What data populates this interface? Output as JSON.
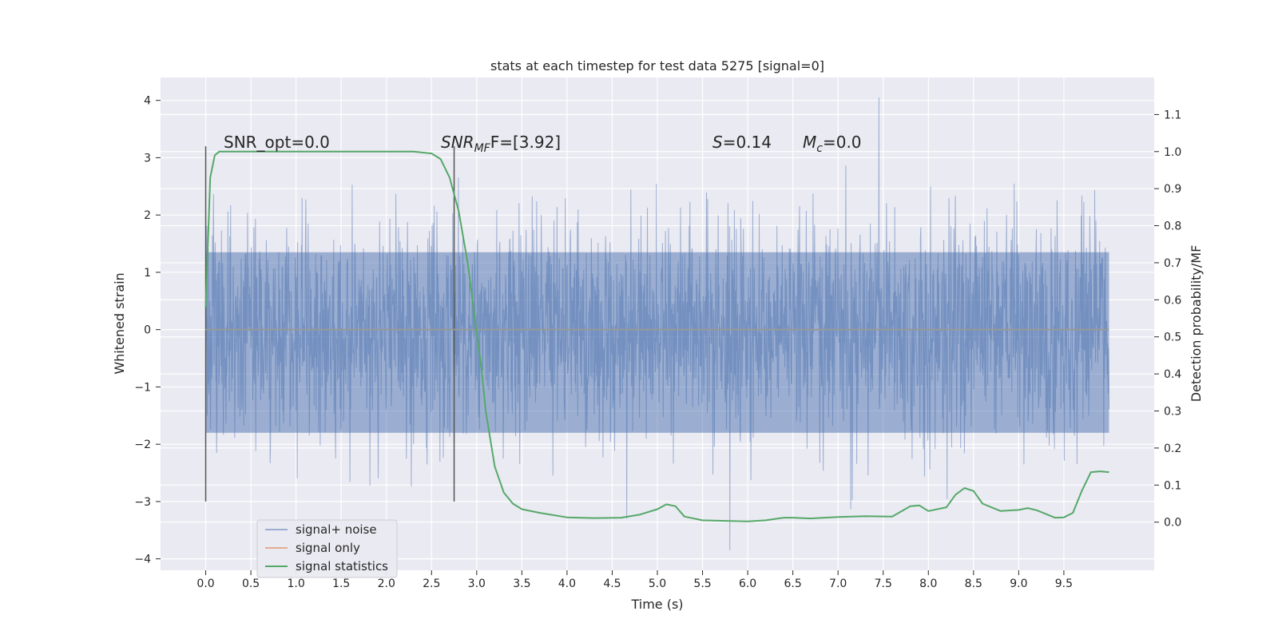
{
  "chart_data": {
    "type": "line",
    "title": "stats at each timestep for test data 5275 [signal=0]",
    "xlabel": "Time (s)",
    "ylabel": "Whitened strain",
    "y2label": "Detection probability/MF",
    "xlim": [
      -0.5,
      10.5
    ],
    "ylim": [
      -4.2,
      4.4
    ],
    "y2lim": [
      -0.13,
      1.2
    ],
    "x_ticks": [
      "0.0",
      "0.5",
      "1.0",
      "1.5",
      "2.0",
      "2.5",
      "3.0",
      "3.5",
      "4.0",
      "4.5",
      "5.0",
      "5.5",
      "6.0",
      "6.5",
      "7.0",
      "7.5",
      "8.0",
      "8.5",
      "9.0",
      "9.5"
    ],
    "y_ticks": [
      "4",
      "3",
      "2",
      "1",
      "0",
      "−1",
      "−2",
      "−3",
      "−4"
    ],
    "y2_ticks": [
      "1.1",
      "1.0",
      "0.9",
      "0.8",
      "0.7",
      "0.6",
      "0.5",
      "0.4",
      "0.3",
      "0.2",
      "0.1",
      "0.0"
    ],
    "grid": true,
    "legend_position": "lower-left",
    "series": [
      {
        "name": "signal+ noise",
        "color": "#4c72b0",
        "kind": "noise",
        "x_range": [
          0.0,
          10.0
        ],
        "core_band": [
          -1.8,
          1.35
        ],
        "extremes": {
          "max": 4.05,
          "min": -3.85
        }
      },
      {
        "name": "signal only",
        "color": "#dd8452",
        "x": [
          0.0,
          10.0
        ],
        "y": [
          0.0,
          0.0
        ]
      },
      {
        "name": "signal statistics",
        "color": "#55a868",
        "axis": "right",
        "x": [
          0.0,
          0.05,
          0.1,
          0.15,
          0.3,
          0.5,
          1.0,
          1.5,
          2.0,
          2.3,
          2.5,
          2.6,
          2.7,
          2.8,
          2.9,
          3.0,
          3.05,
          3.1,
          3.2,
          3.3,
          3.4,
          3.5,
          3.7,
          4.0,
          4.3,
          4.6,
          4.8,
          5.0,
          5.1,
          5.2,
          5.3,
          5.5,
          5.8,
          6.0,
          6.2,
          6.4,
          6.5,
          6.7,
          7.0,
          7.3,
          7.6,
          7.8,
          7.9,
          8.0,
          8.2,
          8.3,
          8.4,
          8.5,
          8.6,
          8.8,
          9.0,
          9.1,
          9.2,
          9.4,
          9.5,
          9.6,
          9.7,
          9.8,
          9.9,
          10.0
        ],
        "y": [
          0.58,
          0.93,
          0.99,
          1.0,
          1.0,
          1.0,
          1.0,
          1.0,
          1.0,
          1.0,
          0.995,
          0.98,
          0.93,
          0.84,
          0.7,
          0.51,
          0.42,
          0.3,
          0.15,
          0.08,
          0.05,
          0.035,
          0.025,
          0.013,
          0.011,
          0.012,
          0.02,
          0.035,
          0.048,
          0.043,
          0.015,
          0.005,
          0.003,
          0.002,
          0.005,
          0.012,
          0.012,
          0.01,
          0.014,
          0.016,
          0.015,
          0.043,
          0.045,
          0.03,
          0.04,
          0.074,
          0.092,
          0.084,
          0.05,
          0.03,
          0.033,
          0.038,
          0.032,
          0.012,
          0.013,
          0.025,
          0.085,
          0.135,
          0.137,
          0.135
        ]
      }
    ],
    "vertical_markers": [
      0.0,
      2.75
    ],
    "annotations": {
      "snr_opt": "SNR_opt=0.0",
      "snr_mf_prefix": "SNR",
      "snr_mf_sub": "MF",
      "snr_mf_suffix": "F=[3.92]",
      "s_label": "S",
      "s_value": "=0.14",
      "mc_label": "M",
      "mc_sub": "c",
      "mc_value": "=0.0"
    }
  }
}
